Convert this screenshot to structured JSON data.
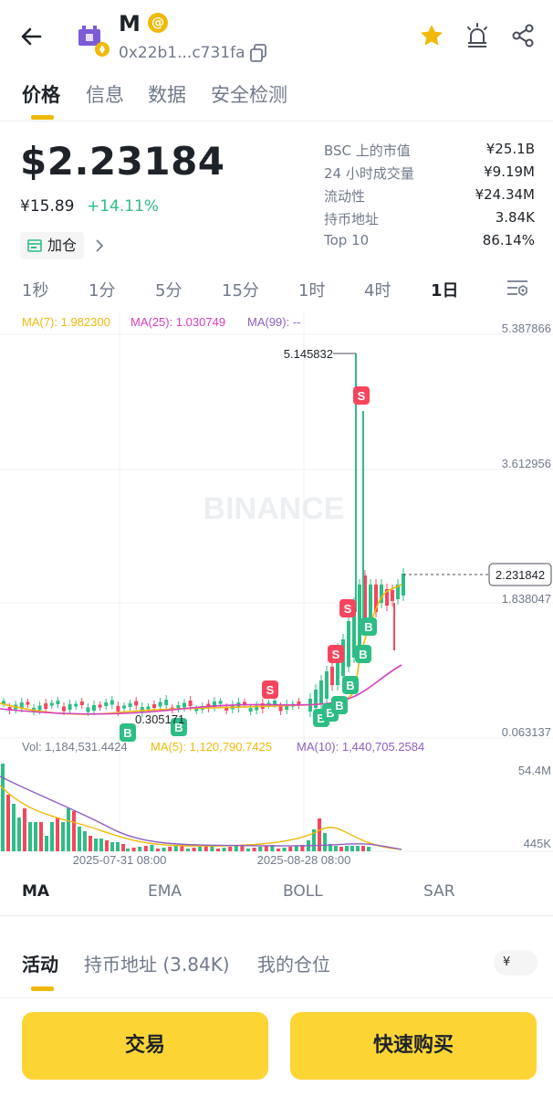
{
  "header": {
    "symbol": "M",
    "at_badge": "@",
    "address": "0x22b1...c731fa"
  },
  "tabs": [
    "价格",
    "信息",
    "数据",
    "安全检测"
  ],
  "price": {
    "usd": "$2.23184",
    "cny": "¥15.89",
    "change": "+14.11%",
    "add_position": "加仓"
  },
  "stats": [
    {
      "label": "BSC 上的市值",
      "value": "¥25.1B"
    },
    {
      "label": "24 小时成交量",
      "value": "¥9.19M"
    },
    {
      "label": "流动性",
      "value": "¥24.34M"
    },
    {
      "label": "持币地址",
      "value": "3.84K"
    },
    {
      "label": "Top 10",
      "value": "86.14%"
    }
  ],
  "timeframes": [
    "1秒",
    "1分",
    "5分",
    "15分",
    "1时",
    "4时",
    "1日"
  ],
  "active_timeframe": "1日",
  "chart_data": {
    "type": "candlestick",
    "watermark": "BINANCE",
    "ma_legend": {
      "ma7": "MA(7): 1.982300",
      "ma25": "MA(25): 1.030749",
      "ma99": "MA(99): --"
    },
    "price_axis": [
      "5.387866",
      "3.612956",
      "1.838047",
      "0.063137"
    ],
    "current_price_label": "2.231842",
    "high_label": "5.145832",
    "low_label": "0.305171",
    "vol_legend": {
      "vol": "Vol: 1,184,531.4424",
      "ma5": "MA(5): 1,120,790.7425",
      "ma10": "MA(10): 1,440,705.2584"
    },
    "vol_axis": [
      "54.4M",
      "445K"
    ],
    "x_labels": [
      "2025-07-31 08:00",
      "2025-08-28 08:00"
    ],
    "colors": {
      "up": "#2ebd85",
      "down": "#f6465d",
      "ma7": "#f0b90b",
      "ma25": "#d63fbf",
      "ma99": "#8d5fc0"
    },
    "marker_b": "B",
    "marker_s": "S"
  },
  "indicators": [
    "MA",
    "EMA",
    "BOLL",
    "SAR"
  ],
  "lower_tabs": [
    "活动",
    "持币地址 (3.84K)",
    "我的仓位"
  ],
  "currency_symbol": "¥",
  "buttons": {
    "trade": "交易",
    "quick_buy": "快速购买"
  }
}
